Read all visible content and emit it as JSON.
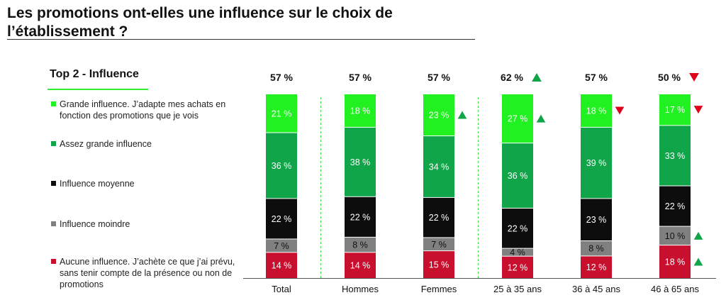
{
  "header": {
    "title_line1": "Les promotions ont-elles une influence sur le choix de",
    "title_line2": "l’établissement ?"
  },
  "legend": {
    "title": "Top 2 - Influence",
    "items": [
      {
        "label": "Grande influence. J’adapte mes achats en fonction des promotions que je vois",
        "color": "#21f121"
      },
      {
        "label": "Assez grande influence",
        "color": "#0fa548"
      },
      {
        "label": "Influence moyenne",
        "color": "#0d0d0d"
      },
      {
        "label": "Influence moindre",
        "color": "#808080"
      },
      {
        "label": "Aucune influence. J’achète ce que j’ai prévu, sans tenir compte de la présence ou non de promotions",
        "color": "#c8102e"
      }
    ]
  },
  "chart_data": {
    "type": "bar",
    "stacked": true,
    "categories": [
      "Total",
      "Hommes",
      "Femmes",
      "25 à 35 ans",
      "36 à 45 ans",
      "46 à 65 ans"
    ],
    "top2_labels": [
      "57 %",
      "57 %",
      "57 %",
      "62 %",
      "57 %",
      "50 %"
    ],
    "top2_markers": [
      "",
      "",
      "",
      "up",
      "",
      "down"
    ],
    "series": [
      {
        "name": "Grande influence. J’adapte mes achats en fonction des promotions que je vois",
        "color": "#21f121",
        "values": [
          21,
          18,
          23,
          27,
          18,
          17
        ],
        "markers": [
          "",
          "",
          "up",
          "up",
          "down",
          "down"
        ]
      },
      {
        "name": "Assez grande influence",
        "color": "#0fa548",
        "values": [
          36,
          38,
          34,
          36,
          39,
          33
        ],
        "markers": [
          "",
          "",
          "",
          "",
          "",
          ""
        ]
      },
      {
        "name": "Influence moyenne",
        "color": "#0d0d0d",
        "values": [
          22,
          22,
          22,
          22,
          23,
          22
        ],
        "markers": [
          "",
          "",
          "",
          "",
          "",
          ""
        ]
      },
      {
        "name": "Influence moindre",
        "color": "#808080",
        "values": [
          7,
          8,
          7,
          4,
          8,
          10
        ],
        "markers": [
          "",
          "",
          "",
          "",
          "",
          "up"
        ]
      },
      {
        "name": "Aucune influence. J’achète ce que j’ai prévu, sans tenir compte de la présence ou non de promotions",
        "color": "#c8102e",
        "values": [
          14,
          14,
          15,
          12,
          12,
          18
        ],
        "markers": [
          "",
          "",
          "",
          "",
          "",
          "up"
        ]
      }
    ],
    "value_suffix": " %",
    "separators_after": [
      "Total",
      "Femmes"
    ],
    "marker_colors": {
      "up": "#0fa548",
      "down": "#e0001b"
    }
  }
}
